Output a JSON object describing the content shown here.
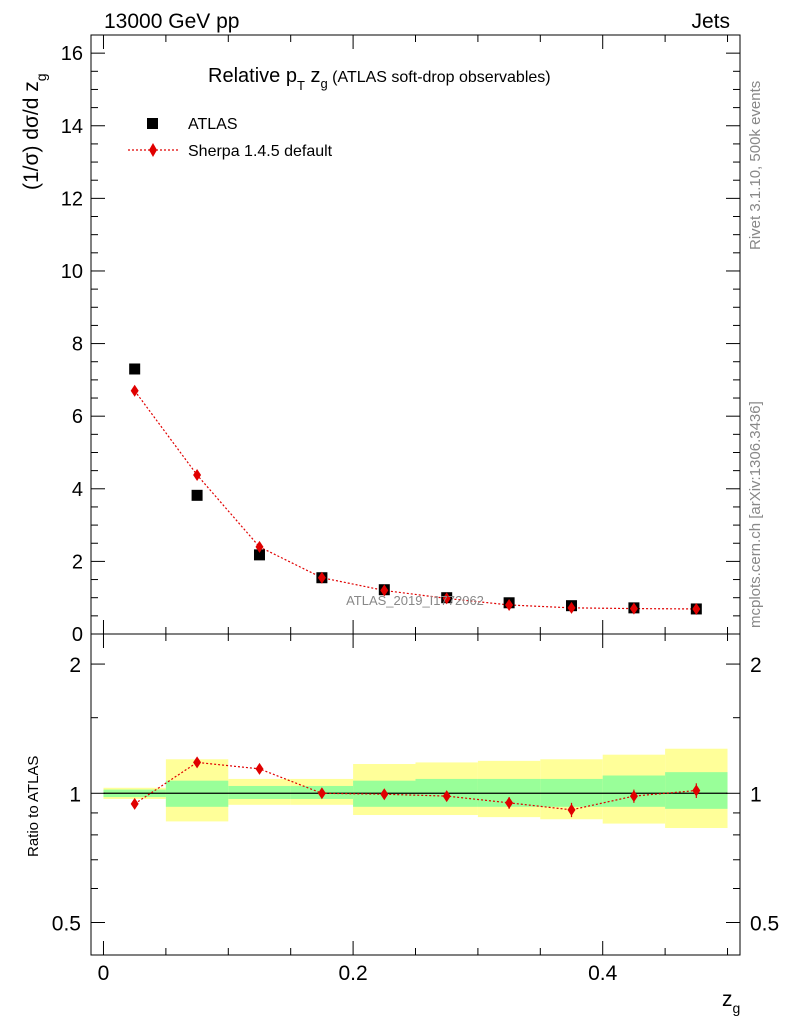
{
  "header": {
    "left": "13000 GeV pp",
    "right": "Jets"
  },
  "side": {
    "rivet": "Rivet 3.1.10,  500k events",
    "mcplots": "mcplots.cern.ch [arXiv:1306.3436]"
  },
  "watermark": "ATLAS_2019_I1772062",
  "colors": {
    "data": "#000000",
    "mc": "#e00000",
    "band_inner": "#99ff99",
    "band_outer": "#ffff99"
  },
  "chart_data": [
    {
      "type": "scatter",
      "title_main": "Relative p",
      "title_sub_T": "T",
      "title_z": " z",
      "title_sub_g": "g",
      "title_rest": " (ATLAS soft-drop observables)",
      "ylabel_main": "(1/σ) dσ/d z",
      "ylabel_sub": "g",
      "xlim": [
        -0.01,
        0.51
      ],
      "ylim": [
        0,
        16.5
      ],
      "yticks": [
        0,
        2,
        4,
        6,
        8,
        10,
        12,
        14,
        16
      ],
      "ytick_labels": [
        "0",
        "2",
        "4",
        "6",
        "8",
        "10",
        "12",
        "14",
        "16"
      ],
      "x": [
        0.025,
        0.075,
        0.125,
        0.175,
        0.225,
        0.275,
        0.325,
        0.375,
        0.425,
        0.475
      ],
      "series": [
        {
          "name": "ATLAS",
          "marker": "square",
          "values": [
            7.3,
            3.82,
            2.18,
            1.55,
            1.22,
            1.0,
            0.86,
            0.78,
            0.72,
            0.69
          ]
        },
        {
          "name": "Sherpa 1.4.5 default",
          "marker": "diamond",
          "values": [
            6.7,
            4.38,
            2.4,
            1.55,
            1.2,
            0.98,
            0.8,
            0.72,
            0.7,
            0.69
          ]
        }
      ]
    },
    {
      "type": "scatter",
      "ylabel": "Ratio to ATLAS",
      "xlabel_main": "z",
      "xlabel_sub": "g",
      "xlim": [
        -0.01,
        0.51
      ],
      "ylim": [
        0.42,
        2.35
      ],
      "yscale": "log",
      "yticks": [
        0.5,
        1,
        2
      ],
      "ytick_labels": [
        "0.5",
        "1",
        "2"
      ],
      "xticks": [
        0,
        0.2,
        0.4
      ],
      "xtick_labels": [
        "0",
        "0.2",
        "0.4"
      ],
      "band_edges": [
        0,
        0.05,
        0.1,
        0.15,
        0.2,
        0.25,
        0.3,
        0.35,
        0.4,
        0.45,
        0.5
      ],
      "band_inner_lo": [
        0.98,
        0.93,
        0.97,
        0.97,
        0.93,
        0.93,
        0.93,
        0.93,
        0.93,
        0.92
      ],
      "band_inner_hi": [
        1.02,
        1.07,
        1.04,
        1.04,
        1.07,
        1.08,
        1.08,
        1.08,
        1.1,
        1.12
      ],
      "band_outer_lo": [
        0.97,
        0.86,
        0.94,
        0.94,
        0.89,
        0.89,
        0.88,
        0.87,
        0.85,
        0.83
      ],
      "band_outer_hi": [
        1.03,
        1.2,
        1.08,
        1.08,
        1.17,
        1.18,
        1.19,
        1.2,
        1.23,
        1.27
      ],
      "ratio": [
        0.945,
        1.18,
        1.14,
        1.0,
        0.995,
        0.985,
        0.95,
        0.915,
        0.985,
        1.015
      ],
      "ratio_err": [
        0.01,
        0.015,
        0.012,
        0.02,
        0.02,
        0.025,
        0.03,
        0.035,
        0.035,
        0.04
      ]
    }
  ]
}
